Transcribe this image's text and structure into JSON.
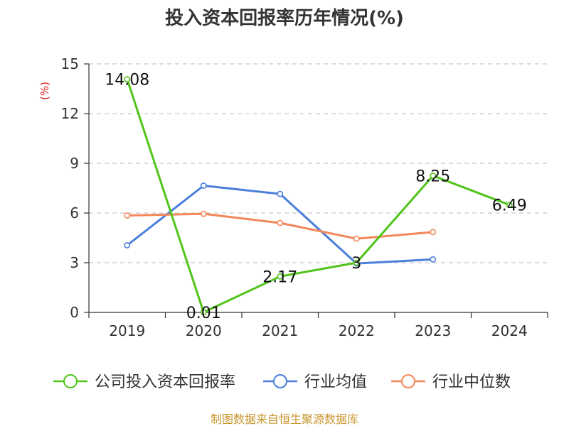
{
  "chart_data": {
    "type": "line",
    "title": "投入资本回报率历年情况(%)",
    "ylabel": "(%)",
    "ylim": [
      0,
      15
    ],
    "yticks": [
      0,
      3,
      6,
      9,
      12,
      15
    ],
    "categories": [
      "2019",
      "2020",
      "2021",
      "2022",
      "2023",
      "2024"
    ],
    "grid": true,
    "legend_position": "bottom",
    "series": [
      {
        "name": "公司投入资本回报率",
        "color": "#52c41a",
        "values": [
          14.08,
          0.01,
          2.17,
          3,
          8.25,
          6.49
        ],
        "labels": [
          "14.08",
          "0.01",
          "2.17",
          "3",
          "8.25",
          "6.49"
        ]
      },
      {
        "name": "行业均值",
        "color": "#4a7fdc",
        "values": [
          4.05,
          7.65,
          7.15,
          2.95,
          3.2,
          null
        ]
      },
      {
        "name": "行业中位数",
        "color": "#f4875a",
        "values": [
          5.85,
          5.95,
          5.4,
          4.45,
          4.85,
          null
        ]
      }
    ]
  },
  "source": "制图数据来自恒生聚源数据库"
}
